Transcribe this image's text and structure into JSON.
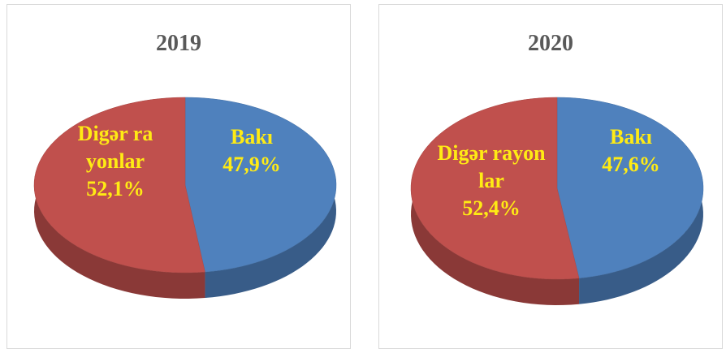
{
  "chart_data": [
    {
      "type": "pie",
      "title": "2019",
      "categories": [
        "Bakı",
        "Digər rayonlar"
      ],
      "values": [
        47.9,
        52.1
      ],
      "value_labels": [
        "47,9%",
        "52,1%"
      ],
      "colors": [
        "#4f81bd",
        "#c0504d"
      ]
    },
    {
      "type": "pie",
      "title": "2020",
      "categories": [
        "Bakı",
        "Digər rayonlar"
      ],
      "values": [
        47.6,
        52.4
      ],
      "value_labels": [
        "47,6%",
        "52,4%"
      ],
      "colors": [
        "#4f81bd",
        "#c0504d"
      ]
    }
  ]
}
